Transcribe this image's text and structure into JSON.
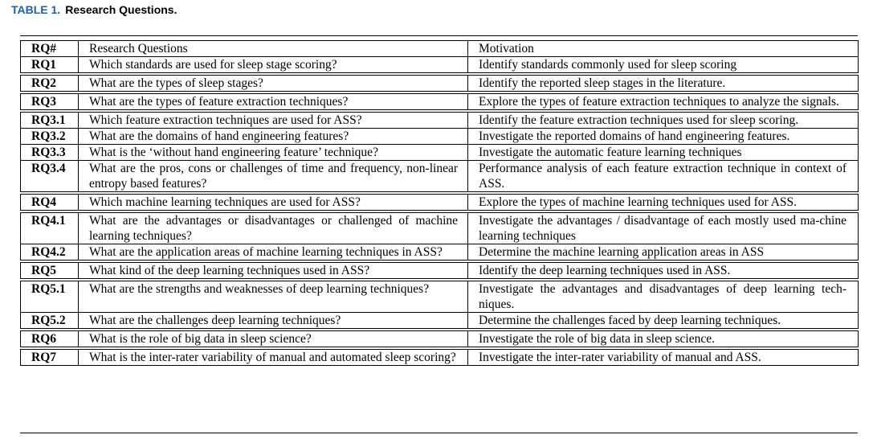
{
  "caption": {
    "number": "TABLE 1.",
    "title": "Research Questions."
  },
  "headers": {
    "id": "RQ#",
    "question": "Research Questions",
    "motivation": "Motivation"
  },
  "rows": [
    {
      "id": "RQ1",
      "question": "Which standards are used for sleep stage scoring?",
      "motivation": "Identify standards commonly used for sleep scoring"
    },
    {
      "id": "RQ2",
      "question": "What are the types of sleep stages?",
      "motivation": "Identify the reported sleep stages in the literature."
    },
    {
      "id": "RQ3",
      "question": "What are the types of feature extraction techniques?",
      "motivation": "Explore the types of feature extraction techniques to analyze the signals."
    },
    {
      "id": "RQ3.1",
      "question": "Which feature extraction techniques are used for ASS?",
      "motivation": "Identify the feature extraction techniques used for sleep scoring."
    },
    {
      "id": "RQ3.2",
      "question": "What are the domains of hand engineering features?",
      "motivation": "Investigate the reported domains of hand engineering features."
    },
    {
      "id": "RQ3.3",
      "question": "What is the ‘without hand engineering feature’ technique?",
      "motivation": "Investigate the automatic feature learning techniques"
    },
    {
      "id": "RQ3.4",
      "question": "What are the pros, cons or challenges of time and frequency, non-linear entropy based features?",
      "motivation": "Performance analysis of each feature extraction technique in context of ASS."
    },
    {
      "id": "RQ4",
      "question": "Which machine learning techniques are used for ASS?",
      "motivation": "Explore the types of machine learning techniques used for ASS."
    },
    {
      "id": "RQ4.1",
      "question": "What are the advantages or disadvantages or challenged of machine learning techniques?",
      "motivation": "Investigate the advantages / disadvantage of each mostly used ma-chine learning techniques"
    },
    {
      "id": "RQ4.2",
      "question": "What are the application areas of machine learning techniques in ASS?",
      "motivation": "Determine the machine learning application areas in ASS"
    },
    {
      "id": "RQ5",
      "question": "What kind of the deep learning techniques used in ASS?",
      "motivation": "Identify the deep learning techniques used in ASS."
    },
    {
      "id": "RQ5.1",
      "question": "What are the strengths and weaknesses of deep learning techniques?",
      "motivation": "Investigate the advantages and disadvantages of deep learning tech-niques."
    },
    {
      "id": "RQ5.2",
      "question": "What are the challenges deep learning techniques?",
      "motivation": "Determine the challenges faced by deep learning techniques."
    },
    {
      "id": "RQ6",
      "question": "What is the role of big data in sleep science?",
      "motivation": "Investigate the role of big data in sleep science."
    },
    {
      "id": "RQ7",
      "question": "What is the inter-rater variability of manual and automated sleep scoring?",
      "motivation": "Investigate the inter-rater variability of manual and ASS."
    }
  ]
}
